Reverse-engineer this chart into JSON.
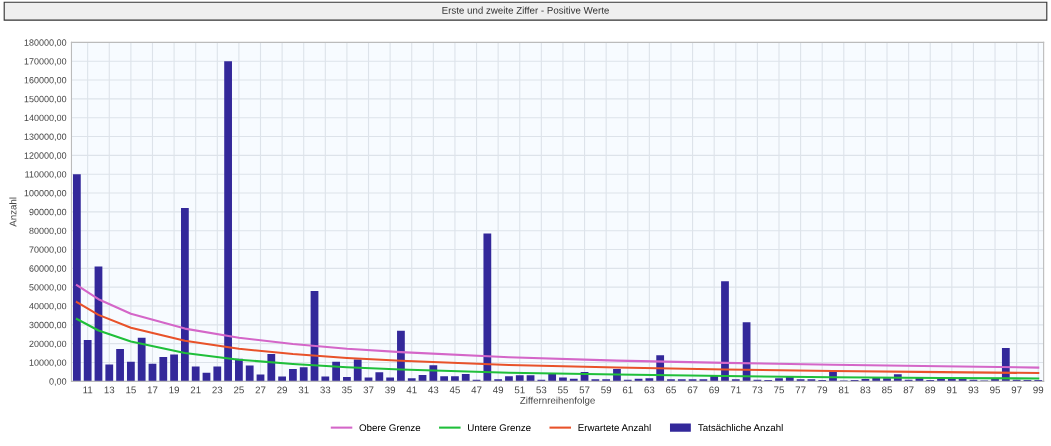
{
  "chart_data": {
    "type": "line",
    "title": "Erste und zweite Ziffer - Positive Werte",
    "xlabel": "Ziffernreihenfolge",
    "ylabel": "Anzahl",
    "xlim": [
      9.5,
      99.5
    ],
    "xticks": [
      11,
      13,
      15,
      17,
      19,
      21,
      23,
      25,
      27,
      29,
      31,
      33,
      35,
      37,
      39,
      41,
      43,
      45,
      47,
      49,
      51,
      53,
      55,
      57,
      59,
      61,
      63,
      65,
      67,
      69,
      71,
      73,
      75,
      77,
      79,
      81,
      83,
      85,
      87,
      89,
      91,
      93,
      95,
      97,
      99
    ],
    "ylim": [
      0,
      180000
    ],
    "yticks": [
      {
        "value": 0,
        "label": "0,00"
      },
      {
        "value": 10000,
        "label": "10000,00"
      },
      {
        "value": 20000,
        "label": "20000,00"
      },
      {
        "value": 30000,
        "label": "30000,00"
      },
      {
        "value": 40000,
        "label": "40000,00"
      },
      {
        "value": 50000,
        "label": "50000,00"
      },
      {
        "value": 60000,
        "label": "60000,00"
      },
      {
        "value": 70000,
        "label": "70000,00"
      },
      {
        "value": 80000,
        "label": "80000,00"
      },
      {
        "value": 90000,
        "label": "90000,00"
      },
      {
        "value": 100000,
        "label": "100000,00"
      },
      {
        "value": 110000,
        "label": "110000,00"
      },
      {
        "value": 120000,
        "label": "120000,00"
      },
      {
        "value": 130000,
        "label": "130000,00"
      },
      {
        "value": 140000,
        "label": "140000,00"
      },
      {
        "value": 150000,
        "label": "150000,00"
      },
      {
        "value": 160000,
        "label": "160000,00"
      },
      {
        "value": 170000,
        "label": "170000,00"
      },
      {
        "value": 180000,
        "label": "180000,00"
      }
    ],
    "grid": true,
    "legend": "bottom",
    "marker": "none",
    "line_style": "solid",
    "series": [
      {
        "name": "Obere Grenze",
        "color": "#d466c8",
        "x": [
          10,
          12,
          15,
          20,
          25,
          30,
          35,
          40,
          50,
          60,
          70,
          80,
          90,
          99
        ],
        "values": [
          51100,
          43600,
          35900,
          28000,
          23100,
          19800,
          17300,
          15500,
          12800,
          11000,
          9800,
          8800,
          8000,
          7300
        ]
      },
      {
        "name": "Untere Grenze",
        "color": "#1fbf3a",
        "x": [
          10,
          12,
          15,
          20,
          25,
          30,
          35,
          40,
          50,
          60,
          70,
          80,
          90,
          99
        ],
        "values": [
          33100,
          27000,
          21100,
          15000,
          11500,
          9200,
          7500,
          6300,
          4600,
          3600,
          2800,
          2200,
          1800,
          1500
        ]
      },
      {
        "name": "Erwartete Anzahl",
        "color": "#e8522a",
        "x": [
          10,
          12,
          15,
          20,
          25,
          30,
          35,
          40,
          50,
          60,
          70,
          80,
          90,
          99
        ],
        "values": [
          42100,
          35300,
          28500,
          21500,
          17300,
          14500,
          12400,
          10900,
          8700,
          7300,
          6300,
          5500,
          4900,
          4400
        ]
      },
      {
        "name": "Tatsächliche Anzahl",
        "type": "bar",
        "color": "#33289a",
        "x": [
          10,
          11,
          12,
          13,
          14,
          15,
          16,
          17,
          18,
          19,
          20,
          21,
          22,
          23,
          24,
          25,
          26,
          27,
          28,
          29,
          30,
          31,
          32,
          33,
          34,
          35,
          36,
          37,
          38,
          39,
          40,
          41,
          42,
          43,
          44,
          45,
          46,
          47,
          48,
          49,
          50,
          51,
          52,
          53,
          54,
          55,
          56,
          57,
          58,
          59,
          60,
          61,
          62,
          63,
          64,
          65,
          66,
          67,
          68,
          69,
          70,
          71,
          72,
          73,
          74,
          75,
          76,
          77,
          78,
          79,
          80,
          81,
          82,
          83,
          84,
          85,
          86,
          87,
          88,
          89,
          90,
          91,
          92,
          93,
          94,
          95,
          96,
          97,
          98,
          99
        ],
        "values": [
          110000,
          22000,
          61000,
          9000,
          17200,
          10400,
          23100,
          9300,
          12900,
          14300,
          92000,
          7900,
          4500,
          7900,
          170000,
          12000,
          8400,
          3600,
          14500,
          2500,
          6500,
          7500,
          48000,
          2500,
          10400,
          2300,
          11600,
          2000,
          4800,
          2000,
          26900,
          1600,
          3400,
          8600,
          2700,
          2700,
          3900,
          900,
          78500,
          1100,
          2700,
          3200,
          3200,
          900,
          3900,
          2100,
          1400,
          5000,
          1100,
          1100,
          6600,
          900,
          1400,
          1600,
          13800,
          1100,
          1100,
          1100,
          1100,
          2900,
          53200,
          1100,
          31400,
          900,
          700,
          1600,
          2500,
          1100,
          1100,
          700,
          5700,
          500,
          700,
          1300,
          2100,
          1600,
          3800,
          900,
          2000,
          700,
          1800,
          1800,
          2000,
          900,
          500,
          1800,
          17700,
          900,
          700,
          700
        ]
      }
    ]
  }
}
